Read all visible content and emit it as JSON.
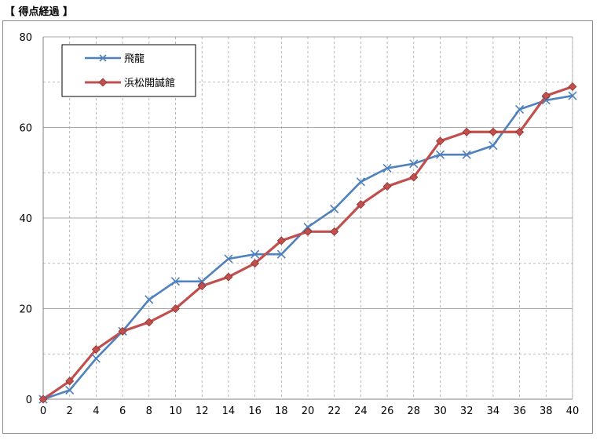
{
  "page": {
    "title": "【 得点経過 】"
  },
  "chart_data": {
    "type": "line",
    "title": "",
    "xlabel": "",
    "ylabel": "",
    "x": [
      0,
      2,
      4,
      6,
      8,
      10,
      12,
      14,
      16,
      18,
      20,
      22,
      24,
      26,
      28,
      30,
      32,
      34,
      36,
      38,
      40
    ],
    "xlim": [
      0,
      40
    ],
    "ylim": [
      0,
      80
    ],
    "x_ticks": [
      0,
      2,
      4,
      6,
      8,
      10,
      12,
      14,
      16,
      18,
      20,
      22,
      24,
      26,
      28,
      30,
      32,
      34,
      36,
      38,
      40
    ],
    "y_ticks": [
      0,
      20,
      40,
      60,
      80
    ],
    "grid": true,
    "legend_position": "top-left",
    "series": [
      {
        "name": "飛龍",
        "color": "#4f81bd",
        "marker": "x",
        "values": [
          0,
          2,
          9,
          15,
          22,
          26,
          26,
          31,
          32,
          32,
          38,
          42,
          48,
          51,
          52,
          54,
          54,
          56,
          64,
          66,
          67
        ]
      },
      {
        "name": "浜松開誠館",
        "color": "#c0504d",
        "marker": "diamond",
        "values": [
          0,
          4,
          11,
          15,
          17,
          20,
          25,
          27,
          30,
          35,
          37,
          37,
          43,
          47,
          49,
          57,
          59,
          59,
          59,
          67,
          69
        ]
      }
    ]
  }
}
